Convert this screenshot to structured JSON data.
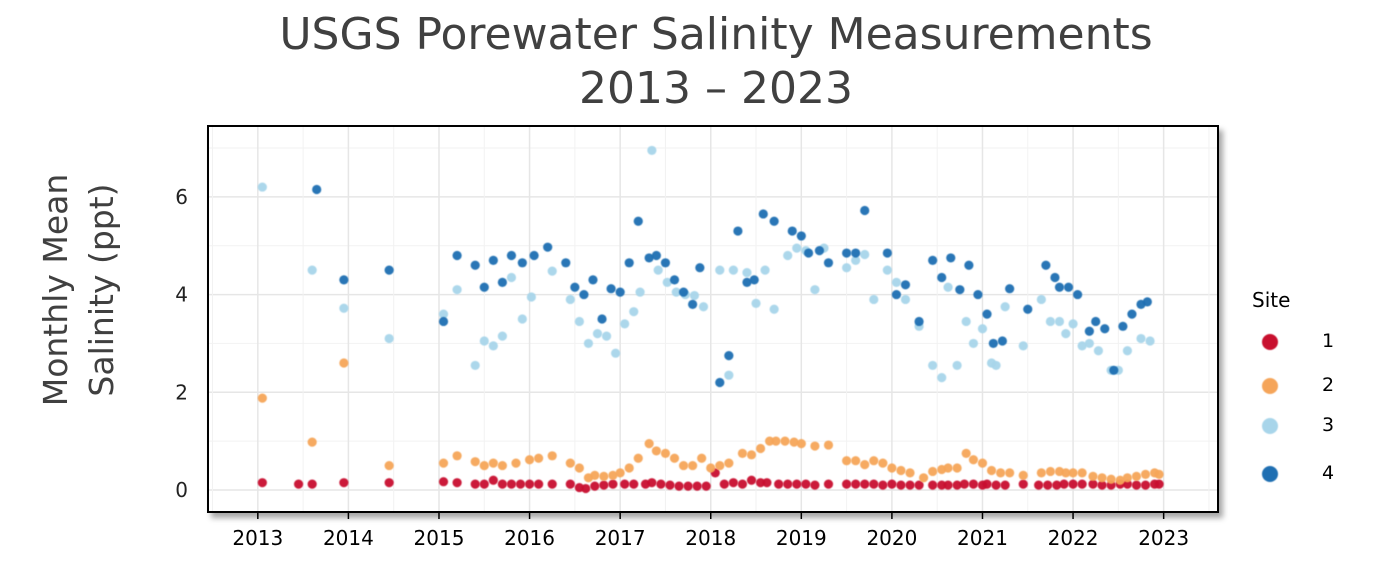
{
  "chart_data": {
    "type": "scatter",
    "title_line1": "USGS Porewater Salinity Measurements",
    "title_line2": "2013 – 2023",
    "ylabel_line1": "Monthly Mean",
    "ylabel_line2": "Salinity (ppt)",
    "xlabel": "",
    "xlim": [
      2012.45,
      2023.6
    ],
    "ylim": [
      -0.45,
      7.45
    ],
    "xticks": [
      "2013",
      "2014",
      "2015",
      "2016",
      "2017",
      "2018",
      "2019",
      "2020",
      "2021",
      "2022",
      "2023"
    ],
    "yticks": [
      "0",
      "2",
      "4",
      "6"
    ],
    "grid": true,
    "legend": {
      "title": "Site",
      "placement": "right"
    },
    "series": [
      {
        "name": "1",
        "color": "#c8102e",
        "points": [
          [
            2013.05,
            0.15
          ],
          [
            2013.45,
            0.12
          ],
          [
            2013.6,
            0.12
          ],
          [
            2013.95,
            0.15
          ],
          [
            2014.45,
            0.15
          ],
          [
            2015.05,
            0.17
          ],
          [
            2015.2,
            0.15
          ],
          [
            2015.4,
            0.12
          ],
          [
            2015.5,
            0.12
          ],
          [
            2015.6,
            0.2
          ],
          [
            2015.7,
            0.12
          ],
          [
            2015.8,
            0.12
          ],
          [
            2015.9,
            0.12
          ],
          [
            2016.0,
            0.12
          ],
          [
            2016.1,
            0.12
          ],
          [
            2016.25,
            0.12
          ],
          [
            2016.45,
            0.12
          ],
          [
            2016.55,
            0.05
          ],
          [
            2016.62,
            0.03
          ],
          [
            2016.72,
            0.08
          ],
          [
            2016.82,
            0.1
          ],
          [
            2016.92,
            0.12
          ],
          [
            2017.05,
            0.12
          ],
          [
            2017.15,
            0.12
          ],
          [
            2017.28,
            0.12
          ],
          [
            2017.35,
            0.15
          ],
          [
            2017.45,
            0.12
          ],
          [
            2017.55,
            0.1
          ],
          [
            2017.65,
            0.08
          ],
          [
            2017.75,
            0.08
          ],
          [
            2017.85,
            0.08
          ],
          [
            2017.95,
            0.08
          ],
          [
            2018.05,
            0.35
          ],
          [
            2018.15,
            0.12
          ],
          [
            2018.25,
            0.15
          ],
          [
            2018.35,
            0.12
          ],
          [
            2018.45,
            0.2
          ],
          [
            2018.55,
            0.15
          ],
          [
            2018.62,
            0.15
          ],
          [
            2018.75,
            0.12
          ],
          [
            2018.85,
            0.12
          ],
          [
            2018.95,
            0.12
          ],
          [
            2019.05,
            0.12
          ],
          [
            2019.15,
            0.1
          ],
          [
            2019.3,
            0.12
          ],
          [
            2019.5,
            0.12
          ],
          [
            2019.6,
            0.12
          ],
          [
            2019.7,
            0.12
          ],
          [
            2019.8,
            0.12
          ],
          [
            2019.9,
            0.1
          ],
          [
            2020.0,
            0.12
          ],
          [
            2020.1,
            0.1
          ],
          [
            2020.2,
            0.1
          ],
          [
            2020.3,
            0.1
          ],
          [
            2020.45,
            0.1
          ],
          [
            2020.55,
            0.1
          ],
          [
            2020.62,
            0.1
          ],
          [
            2020.72,
            0.1
          ],
          [
            2020.8,
            0.12
          ],
          [
            2020.9,
            0.12
          ],
          [
            2021.0,
            0.1
          ],
          [
            2021.05,
            0.12
          ],
          [
            2021.15,
            0.1
          ],
          [
            2021.25,
            0.1
          ],
          [
            2021.45,
            0.12
          ],
          [
            2021.62,
            0.1
          ],
          [
            2021.72,
            0.1
          ],
          [
            2021.82,
            0.1
          ],
          [
            2021.9,
            0.12
          ],
          [
            2022.0,
            0.12
          ],
          [
            2022.1,
            0.12
          ],
          [
            2022.22,
            0.12
          ],
          [
            2022.32,
            0.1
          ],
          [
            2022.42,
            0.1
          ],
          [
            2022.52,
            0.12
          ],
          [
            2022.6,
            0.12
          ],
          [
            2022.7,
            0.1
          ],
          [
            2022.8,
            0.1
          ],
          [
            2022.9,
            0.12
          ],
          [
            2022.95,
            0.12
          ]
        ]
      },
      {
        "name": "2",
        "color": "#f5a55a",
        "points": [
          [
            2013.05,
            1.88
          ],
          [
            2013.6,
            0.98
          ],
          [
            2013.95,
            2.6
          ],
          [
            2014.45,
            0.5
          ],
          [
            2015.05,
            0.55
          ],
          [
            2015.2,
            0.7
          ],
          [
            2015.4,
            0.58
          ],
          [
            2015.5,
            0.5
          ],
          [
            2015.6,
            0.55
          ],
          [
            2015.7,
            0.5
          ],
          [
            2015.85,
            0.55
          ],
          [
            2016.0,
            0.62
          ],
          [
            2016.1,
            0.65
          ],
          [
            2016.25,
            0.7
          ],
          [
            2016.45,
            0.55
          ],
          [
            2016.55,
            0.45
          ],
          [
            2016.65,
            0.25
          ],
          [
            2016.72,
            0.3
          ],
          [
            2016.82,
            0.28
          ],
          [
            2016.92,
            0.3
          ],
          [
            2017.0,
            0.35
          ],
          [
            2017.1,
            0.45
          ],
          [
            2017.2,
            0.65
          ],
          [
            2017.32,
            0.95
          ],
          [
            2017.4,
            0.8
          ],
          [
            2017.5,
            0.75
          ],
          [
            2017.6,
            0.65
          ],
          [
            2017.7,
            0.5
          ],
          [
            2017.8,
            0.5
          ],
          [
            2017.9,
            0.65
          ],
          [
            2018.0,
            0.45
          ],
          [
            2018.1,
            0.5
          ],
          [
            2018.2,
            0.55
          ],
          [
            2018.35,
            0.75
          ],
          [
            2018.45,
            0.72
          ],
          [
            2018.55,
            0.85
          ],
          [
            2018.65,
            1.0
          ],
          [
            2018.72,
            1.0
          ],
          [
            2018.82,
            1.0
          ],
          [
            2018.92,
            0.98
          ],
          [
            2019.0,
            0.95
          ],
          [
            2019.15,
            0.9
          ],
          [
            2019.3,
            0.92
          ],
          [
            2019.5,
            0.6
          ],
          [
            2019.6,
            0.6
          ],
          [
            2019.7,
            0.52
          ],
          [
            2019.8,
            0.6
          ],
          [
            2019.9,
            0.55
          ],
          [
            2020.0,
            0.45
          ],
          [
            2020.1,
            0.4
          ],
          [
            2020.2,
            0.35
          ],
          [
            2020.35,
            0.25
          ],
          [
            2020.45,
            0.38
          ],
          [
            2020.55,
            0.42
          ],
          [
            2020.62,
            0.45
          ],
          [
            2020.72,
            0.45
          ],
          [
            2020.82,
            0.75
          ],
          [
            2020.9,
            0.62
          ],
          [
            2021.0,
            0.55
          ],
          [
            2021.1,
            0.4
          ],
          [
            2021.2,
            0.35
          ],
          [
            2021.3,
            0.35
          ],
          [
            2021.45,
            0.3
          ],
          [
            2021.65,
            0.35
          ],
          [
            2021.75,
            0.38
          ],
          [
            2021.85,
            0.38
          ],
          [
            2021.92,
            0.35
          ],
          [
            2022.0,
            0.35
          ],
          [
            2022.1,
            0.35
          ],
          [
            2022.22,
            0.28
          ],
          [
            2022.32,
            0.25
          ],
          [
            2022.42,
            0.22
          ],
          [
            2022.52,
            0.2
          ],
          [
            2022.6,
            0.25
          ],
          [
            2022.7,
            0.28
          ],
          [
            2022.8,
            0.32
          ],
          [
            2022.9,
            0.35
          ],
          [
            2022.95,
            0.32
          ]
        ]
      },
      {
        "name": "3",
        "color": "#a8d5ea",
        "points": [
          [
            2013.05,
            6.2
          ],
          [
            2013.6,
            4.5
          ],
          [
            2013.95,
            3.72
          ],
          [
            2014.45,
            3.1
          ],
          [
            2015.05,
            3.6
          ],
          [
            2015.2,
            4.1
          ],
          [
            2015.4,
            2.55
          ],
          [
            2015.5,
            3.05
          ],
          [
            2015.6,
            2.95
          ],
          [
            2015.7,
            3.15
          ],
          [
            2015.8,
            4.35
          ],
          [
            2015.92,
            3.5
          ],
          [
            2016.02,
            3.95
          ],
          [
            2016.25,
            4.48
          ],
          [
            2016.45,
            3.9
          ],
          [
            2016.55,
            3.45
          ],
          [
            2016.65,
            3.0
          ],
          [
            2016.75,
            3.2
          ],
          [
            2016.85,
            3.15
          ],
          [
            2016.95,
            2.8
          ],
          [
            2017.05,
            3.4
          ],
          [
            2017.15,
            3.65
          ],
          [
            2017.22,
            4.05
          ],
          [
            2017.35,
            6.95
          ],
          [
            2017.42,
            4.5
          ],
          [
            2017.52,
            4.25
          ],
          [
            2017.62,
            4.05
          ],
          [
            2017.72,
            4.0
          ],
          [
            2017.82,
            3.98
          ],
          [
            2017.92,
            3.75
          ],
          [
            2018.1,
            4.5
          ],
          [
            2018.2,
            2.35
          ],
          [
            2018.25,
            4.5
          ],
          [
            2018.4,
            4.45
          ],
          [
            2018.5,
            3.82
          ],
          [
            2018.6,
            4.5
          ],
          [
            2018.7,
            3.7
          ],
          [
            2018.85,
            4.8
          ],
          [
            2018.95,
            4.95
          ],
          [
            2019.05,
            4.9
          ],
          [
            2019.15,
            4.1
          ],
          [
            2019.25,
            4.95
          ],
          [
            2019.5,
            4.55
          ],
          [
            2019.6,
            4.7
          ],
          [
            2019.7,
            4.82
          ],
          [
            2019.8,
            3.9
          ],
          [
            2019.95,
            4.5
          ],
          [
            2020.05,
            4.25
          ],
          [
            2020.15,
            3.9
          ],
          [
            2020.3,
            3.35
          ],
          [
            2020.45,
            2.55
          ],
          [
            2020.55,
            2.3
          ],
          [
            2020.62,
            4.15
          ],
          [
            2020.72,
            2.55
          ],
          [
            2020.82,
            3.45
          ],
          [
            2020.9,
            3.0
          ],
          [
            2021.0,
            3.3
          ],
          [
            2021.1,
            2.6
          ],
          [
            2021.15,
            2.55
          ],
          [
            2021.25,
            3.75
          ],
          [
            2021.45,
            2.95
          ],
          [
            2021.65,
            3.9
          ],
          [
            2021.75,
            3.45
          ],
          [
            2021.85,
            3.45
          ],
          [
            2021.92,
            3.2
          ],
          [
            2022.0,
            3.4
          ],
          [
            2022.1,
            2.95
          ],
          [
            2022.18,
            3.0
          ],
          [
            2022.28,
            2.85
          ],
          [
            2022.42,
            2.45
          ],
          [
            2022.5,
            2.45
          ],
          [
            2022.6,
            2.85
          ],
          [
            2022.75,
            3.1
          ],
          [
            2022.85,
            3.05
          ]
        ]
      },
      {
        "name": "4",
        "color": "#1f6fb2",
        "points": [
          [
            2013.65,
            6.15
          ],
          [
            2013.95,
            4.3
          ],
          [
            2014.45,
            4.5
          ],
          [
            2015.05,
            3.45
          ],
          [
            2015.2,
            4.8
          ],
          [
            2015.4,
            4.6
          ],
          [
            2015.5,
            4.15
          ],
          [
            2015.6,
            4.7
          ],
          [
            2015.7,
            4.25
          ],
          [
            2015.8,
            4.8
          ],
          [
            2015.92,
            4.65
          ],
          [
            2016.05,
            4.8
          ],
          [
            2016.2,
            4.97
          ],
          [
            2016.4,
            4.65
          ],
          [
            2016.5,
            4.15
          ],
          [
            2016.6,
            4.0
          ],
          [
            2016.7,
            4.3
          ],
          [
            2016.8,
            3.5
          ],
          [
            2016.9,
            4.12
          ],
          [
            2017.0,
            4.05
          ],
          [
            2017.1,
            4.65
          ],
          [
            2017.2,
            5.5
          ],
          [
            2017.32,
            4.75
          ],
          [
            2017.4,
            4.8
          ],
          [
            2017.5,
            4.65
          ],
          [
            2017.6,
            4.3
          ],
          [
            2017.7,
            4.05
          ],
          [
            2017.8,
            3.8
          ],
          [
            2017.88,
            4.55
          ],
          [
            2018.1,
            2.2
          ],
          [
            2018.2,
            2.75
          ],
          [
            2018.3,
            5.3
          ],
          [
            2018.4,
            4.25
          ],
          [
            2018.48,
            4.3
          ],
          [
            2018.58,
            5.65
          ],
          [
            2018.7,
            5.5
          ],
          [
            2018.9,
            5.3
          ],
          [
            2019.0,
            5.2
          ],
          [
            2019.08,
            4.85
          ],
          [
            2019.2,
            4.9
          ],
          [
            2019.3,
            4.65
          ],
          [
            2019.5,
            4.85
          ],
          [
            2019.6,
            4.85
          ],
          [
            2019.7,
            5.72
          ],
          [
            2019.95,
            4.85
          ],
          [
            2020.05,
            4.0
          ],
          [
            2020.15,
            4.2
          ],
          [
            2020.3,
            3.45
          ],
          [
            2020.45,
            4.7
          ],
          [
            2020.55,
            4.35
          ],
          [
            2020.65,
            4.75
          ],
          [
            2020.75,
            4.1
          ],
          [
            2020.85,
            4.6
          ],
          [
            2020.95,
            4.0
          ],
          [
            2021.05,
            3.6
          ],
          [
            2021.12,
            3.0
          ],
          [
            2021.22,
            3.05
          ],
          [
            2021.3,
            4.12
          ],
          [
            2021.5,
            3.7
          ],
          [
            2021.7,
            4.6
          ],
          [
            2021.8,
            4.35
          ],
          [
            2021.85,
            4.15
          ],
          [
            2021.95,
            4.15
          ],
          [
            2022.05,
            4.0
          ],
          [
            2022.18,
            3.25
          ],
          [
            2022.25,
            3.45
          ],
          [
            2022.35,
            3.3
          ],
          [
            2022.45,
            2.45
          ],
          [
            2022.55,
            3.35
          ],
          [
            2022.65,
            3.6
          ],
          [
            2022.75,
            3.8
          ],
          [
            2022.82,
            3.85
          ]
        ]
      }
    ]
  }
}
